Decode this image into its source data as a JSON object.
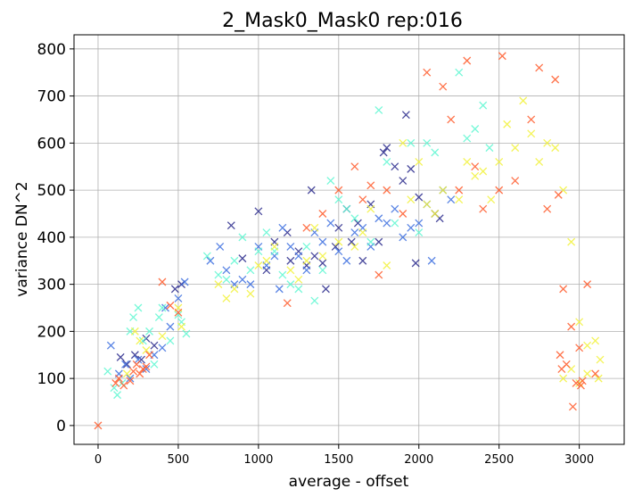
{
  "chart_data": {
    "type": "scatter",
    "title": "2_Mask0_Mask0 rep:016",
    "xlabel": "average - offset",
    "ylabel": "variance DN^2",
    "xlim": [
      -150,
      3280
    ],
    "ylim": [
      -40,
      830
    ],
    "xticks": [
      0,
      500,
      1000,
      1500,
      2000,
      2500,
      3000
    ],
    "yticks": [
      0,
      100,
      200,
      300,
      400,
      500,
      600,
      700,
      800
    ],
    "grid": true,
    "marker": "x",
    "colors": {
      "navy": "#2b2b8c",
      "blue": "#3d6fe0",
      "cyan": "#5ff7d2",
      "yellow": "#f2f23a",
      "orange": "#ff5a2a"
    },
    "series": [
      {
        "color": "navy",
        "points": [
          [
            140,
            145
          ],
          [
            180,
            130
          ],
          [
            230,
            150
          ],
          [
            270,
            140
          ],
          [
            300,
            185
          ],
          [
            350,
            170
          ],
          [
            480,
            290
          ],
          [
            520,
            300
          ],
          [
            830,
            425
          ],
          [
            900,
            355
          ],
          [
            1000,
            455
          ],
          [
            1050,
            330
          ],
          [
            1100,
            390
          ],
          [
            1180,
            410
          ],
          [
            1200,
            350
          ],
          [
            1250,
            370
          ],
          [
            1300,
            340
          ],
          [
            1330,
            500
          ],
          [
            1350,
            360
          ],
          [
            1400,
            345
          ],
          [
            1420,
            290
          ],
          [
            1480,
            380
          ],
          [
            1500,
            420
          ],
          [
            1550,
            460
          ],
          [
            1580,
            390
          ],
          [
            1620,
            430
          ],
          [
            1650,
            350
          ],
          [
            1700,
            470
          ],
          [
            1750,
            390
          ],
          [
            1780,
            580
          ],
          [
            1800,
            590
          ],
          [
            1850,
            550
          ],
          [
            1900,
            520
          ],
          [
            1920,
            660
          ],
          [
            1950,
            545
          ],
          [
            2000,
            485
          ],
          [
            2100,
            450
          ],
          [
            2130,
            440
          ],
          [
            1980,
            345
          ]
        ]
      },
      {
        "color": "blue",
        "points": [
          [
            80,
            170
          ],
          [
            130,
            110
          ],
          [
            170,
            130
          ],
          [
            200,
            100
          ],
          [
            250,
            140
          ],
          [
            300,
            120
          ],
          [
            350,
            150
          ],
          [
            400,
            165
          ],
          [
            420,
            250
          ],
          [
            450,
            210
          ],
          [
            500,
            270
          ],
          [
            540,
            305
          ],
          [
            700,
            350
          ],
          [
            760,
            380
          ],
          [
            800,
            330
          ],
          [
            850,
            300
          ],
          [
            900,
            310
          ],
          [
            950,
            300
          ],
          [
            1000,
            380
          ],
          [
            1050,
            340
          ],
          [
            1100,
            360
          ],
          [
            1130,
            290
          ],
          [
            1150,
            420
          ],
          [
            1200,
            380
          ],
          [
            1250,
            360
          ],
          [
            1300,
            330
          ],
          [
            1350,
            410
          ],
          [
            1400,
            390
          ],
          [
            1450,
            430
          ],
          [
            1500,
            370
          ],
          [
            1550,
            350
          ],
          [
            1600,
            410
          ],
          [
            1650,
            420
          ],
          [
            1700,
            380
          ],
          [
            1750,
            440
          ],
          [
            1800,
            430
          ],
          [
            1850,
            460
          ],
          [
            1900,
            400
          ],
          [
            1950,
            420
          ],
          [
            2000,
            430
          ],
          [
            2050,
            470
          ],
          [
            2080,
            350
          ],
          [
            2150,
            500
          ],
          [
            2200,
            480
          ]
        ]
      },
      {
        "color": "cyan",
        "points": [
          [
            60,
            115
          ],
          [
            100,
            80
          ],
          [
            120,
            65
          ],
          [
            150,
            90
          ],
          [
            200,
            200
          ],
          [
            220,
            230
          ],
          [
            250,
            250
          ],
          [
            280,
            180
          ],
          [
            320,
            200
          ],
          [
            350,
            130
          ],
          [
            380,
            230
          ],
          [
            400,
            250
          ],
          [
            450,
            180
          ],
          [
            500,
            235
          ],
          [
            520,
            220
          ],
          [
            550,
            195
          ],
          [
            680,
            360
          ],
          [
            750,
            320
          ],
          [
            800,
            310
          ],
          [
            850,
            350
          ],
          [
            900,
            400
          ],
          [
            950,
            330
          ],
          [
            1000,
            370
          ],
          [
            1050,
            410
          ],
          [
            1100,
            370
          ],
          [
            1150,
            320
          ],
          [
            1200,
            300
          ],
          [
            1250,
            290
          ],
          [
            1300,
            380
          ],
          [
            1350,
            265
          ],
          [
            1400,
            330
          ],
          [
            1450,
            520
          ],
          [
            1500,
            480
          ],
          [
            1550,
            460
          ],
          [
            1600,
            440
          ],
          [
            1700,
            390
          ],
          [
            1750,
            670
          ],
          [
            1800,
            560
          ],
          [
            1850,
            430
          ],
          [
            1950,
            600
          ],
          [
            2000,
            410
          ],
          [
            2050,
            600
          ],
          [
            2100,
            580
          ],
          [
            2250,
            750
          ],
          [
            2300,
            610
          ],
          [
            2350,
            630
          ],
          [
            2400,
            680
          ],
          [
            2440,
            590
          ]
        ]
      },
      {
        "color": "yellow",
        "points": [
          [
            180,
            110
          ],
          [
            230,
            200
          ],
          [
            260,
            180
          ],
          [
            300,
            160
          ],
          [
            400,
            190
          ],
          [
            500,
            250
          ],
          [
            520,
            210
          ],
          [
            750,
            300
          ],
          [
            800,
            270
          ],
          [
            850,
            290
          ],
          [
            950,
            280
          ],
          [
            1000,
            340
          ],
          [
            1050,
            350
          ],
          [
            1100,
            380
          ],
          [
            1200,
            330
          ],
          [
            1250,
            310
          ],
          [
            1300,
            350
          ],
          [
            1350,
            420
          ],
          [
            1400,
            360
          ],
          [
            1500,
            390
          ],
          [
            1600,
            380
          ],
          [
            1650,
            410
          ],
          [
            1700,
            460
          ],
          [
            1800,
            340
          ],
          [
            1900,
            600
          ],
          [
            1950,
            480
          ],
          [
            2000,
            560
          ],
          [
            2050,
            470
          ],
          [
            2100,
            450
          ],
          [
            2150,
            500
          ],
          [
            2250,
            480
          ],
          [
            2300,
            560
          ],
          [
            2350,
            530
          ],
          [
            2400,
            540
          ],
          [
            2450,
            480
          ],
          [
            2500,
            560
          ],
          [
            2550,
            640
          ],
          [
            2600,
            590
          ],
          [
            2650,
            690
          ],
          [
            2700,
            620
          ],
          [
            2750,
            560
          ],
          [
            2800,
            600
          ],
          [
            2850,
            590
          ],
          [
            2900,
            500
          ],
          [
            2950,
            390
          ],
          [
            3000,
            220
          ],
          [
            3050,
            170
          ],
          [
            3100,
            180
          ],
          [
            3120,
            100
          ],
          [
            3130,
            140
          ],
          [
            2950,
            120
          ],
          [
            2900,
            100
          ],
          [
            3000,
            90
          ],
          [
            3050,
            110
          ]
        ]
      },
      {
        "color": "orange",
        "points": [
          [
            0,
            0
          ],
          [
            110,
            90
          ],
          [
            130,
            100
          ],
          [
            160,
            85
          ],
          [
            200,
            95
          ],
          [
            220,
            115
          ],
          [
            240,
            130
          ],
          [
            260,
            110
          ],
          [
            280,
            120
          ],
          [
            300,
            125
          ],
          [
            320,
            150
          ],
          [
            400,
            305
          ],
          [
            450,
            255
          ],
          [
            500,
            240
          ],
          [
            1180,
            260
          ],
          [
            1300,
            420
          ],
          [
            1400,
            450
          ],
          [
            1500,
            500
          ],
          [
            1600,
            550
          ],
          [
            1650,
            480
          ],
          [
            1700,
            510
          ],
          [
            1750,
            320
          ],
          [
            1800,
            500
          ],
          [
            1900,
            450
          ],
          [
            2050,
            750
          ],
          [
            2150,
            720
          ],
          [
            2200,
            650
          ],
          [
            2250,
            500
          ],
          [
            2300,
            775
          ],
          [
            2350,
            550
          ],
          [
            2400,
            460
          ],
          [
            2500,
            500
          ],
          [
            2520,
            785
          ],
          [
            2600,
            520
          ],
          [
            2700,
            650
          ],
          [
            2750,
            760
          ],
          [
            2800,
            460
          ],
          [
            2850,
            735
          ],
          [
            2870,
            490
          ],
          [
            2900,
            290
          ],
          [
            2950,
            210
          ],
          [
            3000,
            165
          ],
          [
            3050,
            300
          ],
          [
            3100,
            110
          ],
          [
            2890,
            120
          ],
          [
            2920,
            130
          ],
          [
            2960,
            40
          ],
          [
            3010,
            85
          ],
          [
            2880,
            150
          ],
          [
            3020,
            95
          ],
          [
            2980,
            90
          ]
        ]
      }
    ]
  }
}
